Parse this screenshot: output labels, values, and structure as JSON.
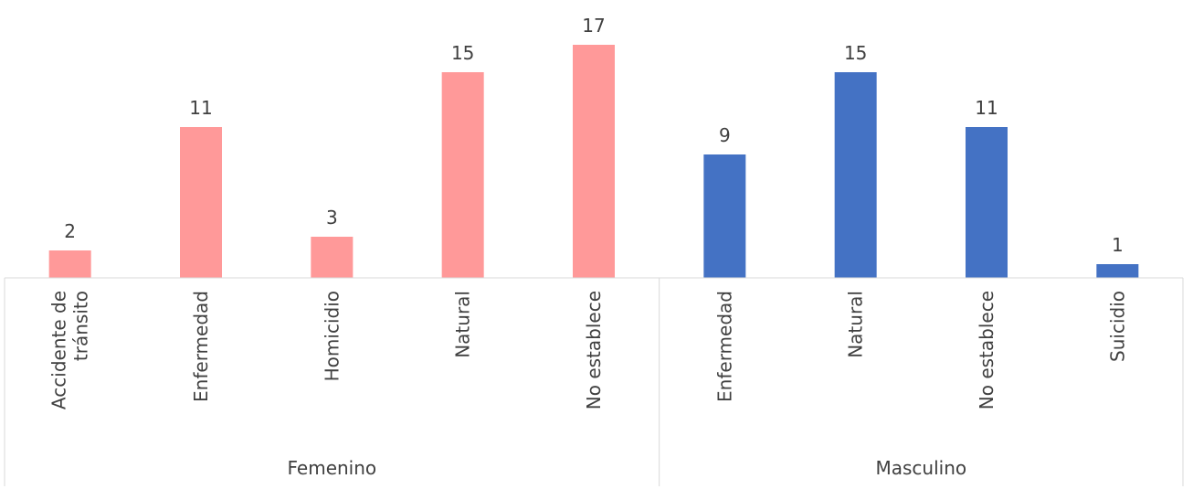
{
  "chart_data": {
    "type": "bar",
    "title": "",
    "xlabel": "",
    "ylabel": "",
    "ylim": [
      0,
      17
    ],
    "grid": false,
    "legend": "none",
    "groups": [
      {
        "name": "Femenino",
        "color": "#ff9999",
        "categories": [
          "Accidente de tránsito",
          "Enfermedad",
          "Homicidio",
          "Natural",
          "No establece"
        ],
        "values": [
          2,
          11,
          3,
          15,
          17
        ]
      },
      {
        "name": "Masculino",
        "color": "#4472c4",
        "categories": [
          "Enfermedad",
          "Natural",
          "No establece",
          "Suicidio"
        ],
        "values": [
          9,
          15,
          11,
          1
        ]
      }
    ]
  }
}
